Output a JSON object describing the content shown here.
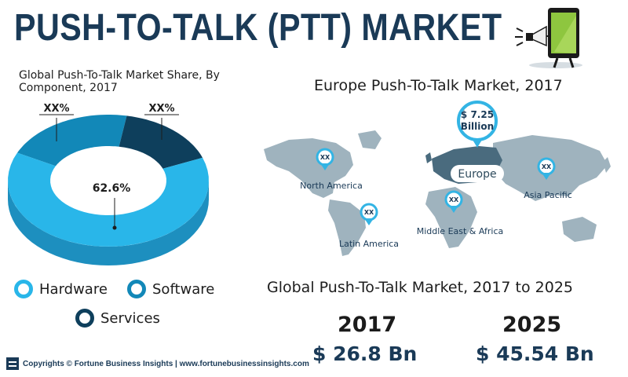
{
  "header": {
    "title": "PUSH-TO-TALK (PTT) MARKET"
  },
  "colors": {
    "hardware": "#29b6e9",
    "software": "#1288b8",
    "services": "#0e3f5c",
    "map_land": "#9fb3be",
    "map_highlight": "#4a6b7e",
    "pin": "#33b4e4",
    "title": "#1a3a57"
  },
  "icons": {
    "phone": "smartphone-with-megaphone-icon",
    "pin": "map-pin-icon",
    "footer": "company-logo-icon"
  },
  "chart_data": [
    {
      "type": "pie",
      "title": "Global Push-To-Talk Market Share, By Component, 2017",
      "variant": "donut",
      "series": [
        {
          "name": "Hardware",
          "value": 62.6,
          "label": "62.6%"
        },
        {
          "name": "Software",
          "value": 21.0,
          "label": "XX%"
        },
        {
          "name": "Services",
          "value": 16.4,
          "label": "XX%"
        }
      ],
      "legend": [
        "Hardware",
        "Software",
        "Services"
      ],
      "legend_placement": "bottom"
    },
    {
      "type": "table",
      "title": "Global Push-To-Talk Market, 2017 to 2025",
      "x": [
        "2017",
        "2025"
      ],
      "values": [
        26.8,
        45.54
      ],
      "value_labels": [
        "$ 26.8 Bn",
        "$ 45.54 Bn"
      ]
    }
  ],
  "map": {
    "title": "Europe Push-To-Talk Market, 2017",
    "highlight_region": "Europe",
    "highlight_value": "$ 7.25",
    "highlight_unit": "Billion",
    "regions": [
      {
        "name": "North America",
        "value": "XX"
      },
      {
        "name": "Latin America",
        "value": "XX"
      },
      {
        "name": "Middle East & Africa",
        "value": "XX"
      },
      {
        "name": "Asia Pacific",
        "value": "XX"
      }
    ]
  },
  "footer": {
    "text": "Copyrights © Fortune Business Insights | www.fortunebusinessinsights.com"
  }
}
